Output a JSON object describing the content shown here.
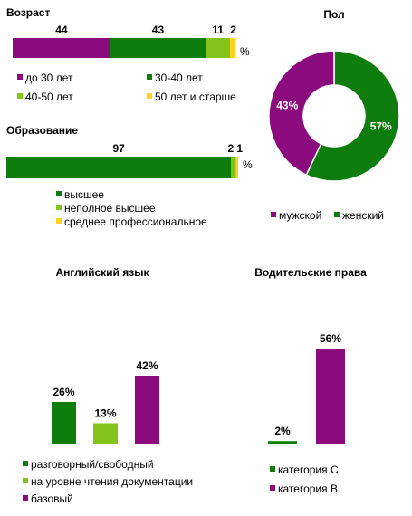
{
  "colors": {
    "purple": "#8b0a7d",
    "green": "#0e7d0e",
    "lightgreen": "#84c41a",
    "yellow": "#ffd21a",
    "pie_text": "#ffffff"
  },
  "chart_data": [
    {
      "id": "age",
      "type": "bar",
      "orientation": "horizontal-stacked",
      "title": "Возраст",
      "unit": "%",
      "series": [
        {
          "name": "до 30 лет",
          "value": 44,
          "color": "#8b0a7d"
        },
        {
          "name": "30-40  лет",
          "value": 43,
          "color": "#0e7d0e"
        },
        {
          "name": "40-50  лет",
          "value": 11,
          "color": "#84c41a"
        },
        {
          "name": "50 лет  и старше",
          "value": 2,
          "color": "#ffd21a"
        }
      ]
    },
    {
      "id": "education",
      "type": "bar",
      "orientation": "horizontal-stacked",
      "title": "Образование",
      "unit": "%",
      "series": [
        {
          "name": "высшее",
          "value": 97,
          "color": "#0e7d0e"
        },
        {
          "name": "неполное высшее",
          "value": 2,
          "color": "#84c41a"
        },
        {
          "name": "среднее профессиональное",
          "value": 1,
          "color": "#ffd21a"
        }
      ]
    },
    {
      "id": "gender",
      "type": "pie",
      "donut": true,
      "title": "Пол",
      "slices": [
        {
          "name": "мужской",
          "value": 43,
          "label": "43%",
          "color": "#8b0a7d"
        },
        {
          "name": "женский",
          "value": 57,
          "label": "57%",
          "color": "#0e7d0e"
        }
      ]
    },
    {
      "id": "english",
      "type": "bar",
      "title": "Английский  язык",
      "categories": [
        "разговорный/свободный",
        "на уровне чтения документации",
        "базовый"
      ],
      "values": [
        26,
        13,
        42
      ],
      "labels": [
        "26%",
        "13%",
        "42%"
      ],
      "colors": [
        "#0e7d0e",
        "#84c41a",
        "#8b0a7d"
      ],
      "ylim": [
        0,
        42
      ]
    },
    {
      "id": "license",
      "type": "bar",
      "title": "Водительские права",
      "categories": [
        "категория  С",
        "категория  В"
      ],
      "values": [
        2,
        56
      ],
      "labels": [
        "2%",
        "56%"
      ],
      "colors": [
        "#0e7d0e",
        "#8b0a7d"
      ],
      "ylim": [
        0,
        56
      ]
    }
  ]
}
